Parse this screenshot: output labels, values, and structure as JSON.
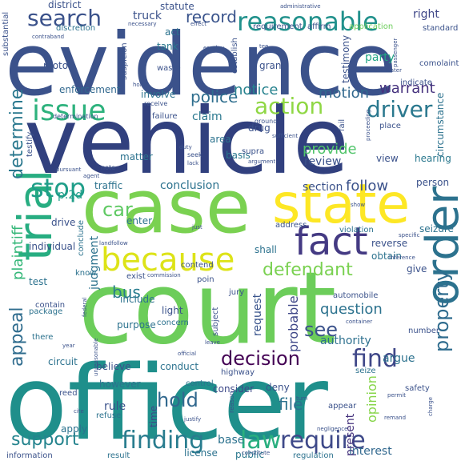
{
  "words": [
    {
      "text": "evidence",
      "color": "#3b528b"
    },
    {
      "text": "vehicle",
      "color": "#31407e"
    },
    {
      "text": "court",
      "color": "#6ccd5a"
    },
    {
      "text": "officer",
      "color": "#1f8f8b"
    },
    {
      "text": "case",
      "color": "#7ad151"
    },
    {
      "text": "state",
      "color": "#fde725"
    },
    {
      "text": "fact",
      "color": "#443a83"
    },
    {
      "text": "because",
      "color": "#dde318"
    },
    {
      "text": "trial",
      "color": "#27ad81"
    },
    {
      "text": "order",
      "color": "#2c728e"
    },
    {
      "text": "reasonable",
      "color": "#21918c"
    },
    {
      "text": "search",
      "color": "#3b528b"
    },
    {
      "text": "issue",
      "color": "#2db27d"
    },
    {
      "text": "stop",
      "color": "#1f9e89"
    },
    {
      "text": "finding",
      "color": "#287c8e"
    },
    {
      "text": "require",
      "color": "#3e4989"
    },
    {
      "text": "law",
      "color": "#29af7f"
    },
    {
      "text": "find",
      "color": "#3f4788"
    },
    {
      "text": "action",
      "color": "#8fd744"
    },
    {
      "text": "driver",
      "color": "#2a788e"
    },
    {
      "text": "defendant",
      "color": "#7ad151"
    },
    {
      "text": "property",
      "color": "#2f6c8e"
    },
    {
      "text": "decision",
      "color": "#440154"
    },
    {
      "text": "hold",
      "color": "#31688e"
    },
    {
      "text": "support",
      "color": "#25848e"
    },
    {
      "text": "police",
      "color": "#2e6e8e"
    },
    {
      "text": "car",
      "color": "#5ec962"
    },
    {
      "text": "see",
      "color": "#3b528b"
    },
    {
      "text": "record",
      "color": "#3a548c"
    },
    {
      "text": "determine",
      "color": "#2a788e"
    },
    {
      "text": "appeal",
      "color": "#2f6c8e"
    },
    {
      "text": "plaintiff",
      "color": "#35b779"
    },
    {
      "text": "question",
      "color": "#2c728e"
    },
    {
      "text": "bus",
      "color": "#287c8e"
    },
    {
      "text": "file",
      "color": "#2c728e"
    },
    {
      "text": "provide",
      "color": "#50c46a"
    },
    {
      "text": "review",
      "color": "#3b528b"
    },
    {
      "text": "conclusion",
      "color": "#2c728e"
    },
    {
      "text": "section",
      "color": "#3b528b"
    },
    {
      "text": "follow",
      "color": "#3b528b"
    },
    {
      "text": "notice",
      "color": "#26828e"
    },
    {
      "text": "motion",
      "color": "#31688e"
    },
    {
      "text": "warrant",
      "color": "#46327e"
    },
    {
      "text": "claim",
      "color": "#2a788e"
    },
    {
      "text": "judgment",
      "color": "#2c728e"
    },
    {
      "text": "opinion",
      "color": "#86d549"
    },
    {
      "text": "present",
      "color": "#46337e"
    },
    {
      "text": "probable",
      "color": "#3f4788"
    },
    {
      "text": "authority",
      "color": "#2d708e"
    },
    {
      "text": "interest",
      "color": "#31688e"
    },
    {
      "text": "base",
      "color": "#2c728e"
    },
    {
      "text": "public",
      "color": "#2a788e"
    },
    {
      "text": "argue",
      "color": "#2c728e"
    },
    {
      "text": "request",
      "color": "#3a548c"
    },
    {
      "text": "consider",
      "color": "#3e4989"
    },
    {
      "text": "rule",
      "color": "#3b528b"
    },
    {
      "text": "time",
      "color": "#3f4788"
    },
    {
      "text": "party",
      "color": "#21a685"
    },
    {
      "text": "truck",
      "color": "#3b528b"
    },
    {
      "text": "right",
      "color": "#3f4788"
    },
    {
      "text": "statute",
      "color": "#3b528b"
    },
    {
      "text": "district",
      "color": "#3b528b"
    },
    {
      "text": "act",
      "color": "#2c728e"
    },
    {
      "text": "tank",
      "color": "#2a788e"
    },
    {
      "text": "motor",
      "color": "#3b528b"
    },
    {
      "text": "grant",
      "color": "#3b528b"
    },
    {
      "text": "enforcement",
      "color": "#31688e"
    },
    {
      "text": "involve",
      "color": "#2c728e"
    },
    {
      "text": "area",
      "color": "#2c728e"
    },
    {
      "text": "basis",
      "color": "#2a788e"
    },
    {
      "text": "matter",
      "color": "#2c728e"
    },
    {
      "text": "traffic",
      "color": "#2c728e"
    },
    {
      "text": "person",
      "color": "#3b528b"
    },
    {
      "text": "view",
      "color": "#3b528b"
    },
    {
      "text": "hearing",
      "color": "#2a788e"
    },
    {
      "text": "drug",
      "color": "#3b528b"
    },
    {
      "text": "testimony",
      "color": "#3b528b"
    },
    {
      "text": "circumstance",
      "color": "#2c728e"
    },
    {
      "text": "p.2d",
      "color": "#1f9e89"
    },
    {
      "text": "drive",
      "color": "#3b528b"
    },
    {
      "text": "enter",
      "color": "#2c728e"
    },
    {
      "text": "shall",
      "color": "#2c728e"
    },
    {
      "text": "address",
      "color": "#3b528b"
    },
    {
      "text": "violation",
      "color": "#2c728e"
    },
    {
      "text": "seizure",
      "color": "#2c728e"
    },
    {
      "text": "reverse",
      "color": "#3b528b"
    },
    {
      "text": "obtain",
      "color": "#2c728e"
    },
    {
      "text": "give",
      "color": "#3b528b"
    },
    {
      "text": "light",
      "color": "#3b528b"
    },
    {
      "text": "include",
      "color": "#2c728e"
    },
    {
      "text": "purpose",
      "color": "#2c728e"
    },
    {
      "text": "believe",
      "color": "#3b528b"
    },
    {
      "text": "conduct",
      "color": "#2c728e"
    },
    {
      "text": "however",
      "color": "#2c728e"
    },
    {
      "text": "highway",
      "color": "#3b528b"
    },
    {
      "text": "deny",
      "color": "#3b528b"
    },
    {
      "text": "circuit",
      "color": "#2c728e"
    },
    {
      "text": "test",
      "color": "#2c728e"
    },
    {
      "text": "individual",
      "color": "#3b528b"
    },
    {
      "text": "conclude",
      "color": "#2c728e"
    },
    {
      "text": "know",
      "color": "#2c728e"
    },
    {
      "text": "exist",
      "color": "#3b528b"
    },
    {
      "text": "subject",
      "color": "#3b528b"
    },
    {
      "text": "refuse",
      "color": "#2c728e"
    },
    {
      "text": "apply",
      "color": "#2c728e"
    },
    {
      "text": "license",
      "color": "#2c728e"
    },
    {
      "text": "result",
      "color": "#2c728e"
    },
    {
      "text": "information",
      "color": "#3b528b"
    },
    {
      "text": "regulation",
      "color": "#2c728e"
    },
    {
      "text": "appear",
      "color": "#3b528b"
    },
    {
      "text": "safety",
      "color": "#3b528b"
    },
    {
      "text": "number",
      "color": "#3b528b"
    },
    {
      "text": "automobile",
      "color": "#3b528b"
    },
    {
      "text": "control",
      "color": "#2c728e"
    },
    {
      "text": "concern",
      "color": "#2c728e"
    },
    {
      "text": "package",
      "color": "#2c728e"
    },
    {
      "text": "contain",
      "color": "#3b528b"
    },
    {
      "text": "there",
      "color": "#2c728e"
    },
    {
      "text": "seize",
      "color": "#2c728e"
    },
    {
      "text": "establish",
      "color": "#3b528b"
    },
    {
      "text": "requirement",
      "color": "#3b528b"
    },
    {
      "text": "affirm",
      "color": "#3b528b"
    },
    {
      "text": "application",
      "color": "#6ccd5a"
    },
    {
      "text": "standard",
      "color": "#3b528b"
    },
    {
      "text": "substantial",
      "color": "#3b528b"
    },
    {
      "text": "discretion",
      "color": "#2c728e"
    },
    {
      "text": "evidence2",
      "color": "#3b528b"
    },
    {
      "text": "comolaint",
      "color": "#3b528b"
    },
    {
      "text": "passenger",
      "color": "#3b528b"
    },
    {
      "text": "use",
      "color": "#3b528b"
    },
    {
      "text": "water",
      "color": "#3b528b"
    },
    {
      "text": "indicate",
      "color": "#3b528b"
    },
    {
      "text": "waste",
      "color": "#3b528b"
    },
    {
      "text": "failure",
      "color": "#3b528b"
    },
    {
      "text": "receive",
      "color": "#3b528b"
    },
    {
      "text": "ground",
      "color": "#3b528b"
    },
    {
      "text": "supra",
      "color": "#3b528b"
    },
    {
      "text": "argument",
      "color": "#3b528b"
    },
    {
      "text": "fail",
      "color": "#3b528b"
    },
    {
      "text": "place",
      "color": "#3b528b"
    },
    {
      "text": "testify",
      "color": "#3b528b"
    },
    {
      "text": "pursuant",
      "color": "#3b528b"
    },
    {
      "text": "note",
      "color": "#3b528b"
    },
    {
      "text": "seek",
      "color": "#3b528b"
    },
    {
      "text": "lack",
      "color": "#3b528b"
    },
    {
      "text": "sufficient",
      "color": "#3b528b"
    },
    {
      "text": "proceeding",
      "color": "#3b528b"
    },
    {
      "text": "suspicion",
      "color": "#3b528b"
    },
    {
      "text": "determination",
      "color": "#3b528b"
    },
    {
      "text": "contend",
      "color": "#3b528b"
    },
    {
      "text": "specific",
      "color": "#3b528b"
    },
    {
      "text": "inference",
      "color": "#3b528b"
    },
    {
      "text": "commission",
      "color": "#3b528b"
    },
    {
      "text": "poin",
      "color": "#3b528b"
    },
    {
      "text": "jury",
      "color": "#3b528b"
    },
    {
      "text": "permit",
      "color": "#3b528b"
    },
    {
      "text": "charge",
      "color": "#3b528b"
    },
    {
      "text": "container",
      "color": "#3b528b"
    },
    {
      "text": "federal",
      "color": "#3b528b"
    },
    {
      "text": "unreasonable",
      "color": "#3b528b"
    },
    {
      "text": "official",
      "color": "#3b528b"
    },
    {
      "text": "reed",
      "color": "#3b528b"
    },
    {
      "text": "constitute",
      "color": "#3b528b"
    },
    {
      "text": "negligence",
      "color": "#3b528b"
    },
    {
      "text": "remand",
      "color": "#3b528b"
    },
    {
      "text": "reason",
      "color": "#3b528b"
    },
    {
      "text": "justify",
      "color": "#3b528b"
    },
    {
      "text": "cite",
      "color": "#3b528b"
    },
    {
      "text": "year",
      "color": "#3b528b"
    },
    {
      "text": "leave",
      "color": "#3b528b"
    },
    {
      "text": "turn",
      "color": "#3b528b"
    },
    {
      "text": "administrative",
      "color": "#3b528b"
    },
    {
      "text": "contraband",
      "color": "#3b528b"
    },
    {
      "text": "necessary",
      "color": "#3b528b"
    },
    {
      "text": "effect",
      "color": "#3b528b"
    },
    {
      "text": "tee",
      "color": "#3b528b"
    },
    {
      "text": "home",
      "color": "#3b528b"
    },
    {
      "text": "duty",
      "color": "#3b528b"
    },
    {
      "text": "landfollow",
      "color": "#3b528b"
    },
    {
      "text": "show",
      "color": "#3b528b"
    },
    {
      "text": "just",
      "color": "#3b528b"
    },
    {
      "text": "agent",
      "color": "#3b528b"
    },
    {
      "text": "employ",
      "color": "#3b528b"
    }
  ]
}
